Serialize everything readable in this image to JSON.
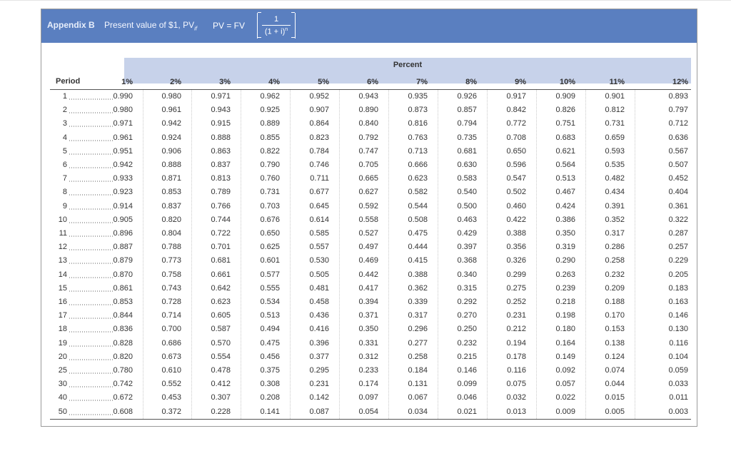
{
  "header": {
    "appendix_label": "Appendix B",
    "description": "Present value of $1, PV",
    "description_sub": "if",
    "formula_lhs": "PV = FV",
    "formula_num": "1",
    "formula_den": "(1 + i)",
    "formula_den_exp": "n"
  },
  "table": {
    "percent_title": "Percent",
    "period_header": "Period",
    "rates": [
      "1%",
      "2%",
      "3%",
      "4%",
      "5%",
      "6%",
      "7%",
      "8%",
      "9%",
      "10%",
      "11%",
      "12%"
    ],
    "rows": [
      {
        "period": "1",
        "values": [
          "0.990",
          "0.980",
          "0.971",
          "0.962",
          "0.952",
          "0.943",
          "0.935",
          "0.926",
          "0.917",
          "0.909",
          "0.901",
          "0.893"
        ]
      },
      {
        "period": "2",
        "values": [
          "0.980",
          "0.961",
          "0.943",
          "0.925",
          "0.907",
          "0.890",
          "0.873",
          "0.857",
          "0.842",
          "0.826",
          "0.812",
          "0.797"
        ]
      },
      {
        "period": "3",
        "values": [
          "0.971",
          "0.942",
          "0.915",
          "0.889",
          "0.864",
          "0.840",
          "0.816",
          "0.794",
          "0.772",
          "0.751",
          "0.731",
          "0.712"
        ]
      },
      {
        "period": "4",
        "values": [
          "0.961",
          "0.924",
          "0.888",
          "0.855",
          "0.823",
          "0.792",
          "0.763",
          "0.735",
          "0.708",
          "0.683",
          "0.659",
          "0.636"
        ]
      },
      {
        "period": "5",
        "values": [
          "0.951",
          "0.906",
          "0.863",
          "0.822",
          "0.784",
          "0.747",
          "0.713",
          "0.681",
          "0.650",
          "0.621",
          "0.593",
          "0.567"
        ]
      },
      {
        "period": "6",
        "values": [
          "0.942",
          "0.888",
          "0.837",
          "0.790",
          "0.746",
          "0.705",
          "0.666",
          "0.630",
          "0.596",
          "0.564",
          "0.535",
          "0.507"
        ]
      },
      {
        "period": "7",
        "values": [
          "0.933",
          "0.871",
          "0.813",
          "0.760",
          "0.711",
          "0.665",
          "0.623",
          "0.583",
          "0.547",
          "0.513",
          "0.482",
          "0.452"
        ]
      },
      {
        "period": "8",
        "values": [
          "0.923",
          "0.853",
          "0.789",
          "0.731",
          "0.677",
          "0.627",
          "0.582",
          "0.540",
          "0.502",
          "0.467",
          "0.434",
          "0.404"
        ]
      },
      {
        "period": "9",
        "values": [
          "0.914",
          "0.837",
          "0.766",
          "0.703",
          "0.645",
          "0.592",
          "0.544",
          "0.500",
          "0.460",
          "0.424",
          "0.391",
          "0.361"
        ]
      },
      {
        "period": "10",
        "values": [
          "0.905",
          "0.820",
          "0.744",
          "0.676",
          "0.614",
          "0.558",
          "0.508",
          "0.463",
          "0.422",
          "0.386",
          "0.352",
          "0.322"
        ]
      },
      {
        "period": "11",
        "values": [
          "0.896",
          "0.804",
          "0.722",
          "0.650",
          "0.585",
          "0.527",
          "0.475",
          "0.429",
          "0.388",
          "0.350",
          "0.317",
          "0.287"
        ]
      },
      {
        "period": "12",
        "values": [
          "0.887",
          "0.788",
          "0.701",
          "0.625",
          "0.557",
          "0.497",
          "0.444",
          "0.397",
          "0.356",
          "0.319",
          "0.286",
          "0.257"
        ]
      },
      {
        "period": "13",
        "values": [
          "0.879",
          "0.773",
          "0.681",
          "0.601",
          "0.530",
          "0.469",
          "0.415",
          "0.368",
          "0.326",
          "0.290",
          "0.258",
          "0.229"
        ]
      },
      {
        "period": "14",
        "values": [
          "0.870",
          "0.758",
          "0.661",
          "0.577",
          "0.505",
          "0.442",
          "0.388",
          "0.340",
          "0.299",
          "0.263",
          "0.232",
          "0.205"
        ]
      },
      {
        "period": "15",
        "values": [
          "0.861",
          "0.743",
          "0.642",
          "0.555",
          "0.481",
          "0.417",
          "0.362",
          "0.315",
          "0.275",
          "0.239",
          "0.209",
          "0.183"
        ]
      },
      {
        "period": "16",
        "values": [
          "0.853",
          "0.728",
          "0.623",
          "0.534",
          "0.458",
          "0.394",
          "0.339",
          "0.292",
          "0.252",
          "0.218",
          "0.188",
          "0.163"
        ]
      },
      {
        "period": "17",
        "values": [
          "0.844",
          "0.714",
          "0.605",
          "0.513",
          "0.436",
          "0.371",
          "0.317",
          "0.270",
          "0.231",
          "0.198",
          "0.170",
          "0.146"
        ]
      },
      {
        "period": "18",
        "values": [
          "0.836",
          "0.700",
          "0.587",
          "0.494",
          "0.416",
          "0.350",
          "0.296",
          "0.250",
          "0.212",
          "0.180",
          "0.153",
          "0.130"
        ]
      },
      {
        "period": "19",
        "values": [
          "0.828",
          "0.686",
          "0.570",
          "0.475",
          "0.396",
          "0.331",
          "0.277",
          "0.232",
          "0.194",
          "0.164",
          "0.138",
          "0.116"
        ]
      },
      {
        "period": "20",
        "values": [
          "0.820",
          "0.673",
          "0.554",
          "0.456",
          "0.377",
          "0.312",
          "0.258",
          "0.215",
          "0.178",
          "0.149",
          "0.124",
          "0.104"
        ]
      },
      {
        "period": "25",
        "values": [
          "0.780",
          "0.610",
          "0.478",
          "0.375",
          "0.295",
          "0.233",
          "0.184",
          "0.146",
          "0.116",
          "0.092",
          "0.074",
          "0.059"
        ]
      },
      {
        "period": "30",
        "values": [
          "0.742",
          "0.552",
          "0.412",
          "0.308",
          "0.231",
          "0.174",
          "0.131",
          "0.099",
          "0.075",
          "0.057",
          "0.044",
          "0.033"
        ]
      },
      {
        "period": "40",
        "values": [
          "0.672",
          "0.453",
          "0.307",
          "0.208",
          "0.142",
          "0.097",
          "0.067",
          "0.046",
          "0.032",
          "0.022",
          "0.015",
          "0.011"
        ]
      },
      {
        "period": "50",
        "values": [
          "0.608",
          "0.372",
          "0.228",
          "0.141",
          "0.087",
          "0.054",
          "0.034",
          "0.021",
          "0.013",
          "0.009",
          "0.005",
          "0.003"
        ]
      }
    ]
  },
  "colors": {
    "banner": "#5a7fc0",
    "percent_band": "#c7d2ea"
  }
}
